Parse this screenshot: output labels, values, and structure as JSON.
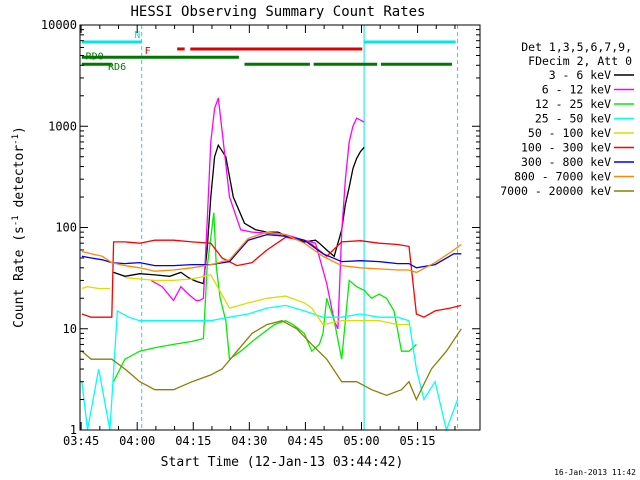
{
  "chart_data": {
    "type": "line",
    "title": "HESSI Observing Summary Count Rates",
    "xlabel": "Start Time (12-Jan-13 03:44:42)",
    "ylabel_main": "Count Rate (s",
    "ylabel_sup1": "-1",
    "ylabel_mid": " detector",
    "ylabel_sup2": "-1",
    "ylabel_end": ")",
    "y_scale": "log",
    "xlim_min": [
      0,
      107
    ],
    "ylim": [
      1,
      10000
    ],
    "x_ticks": [
      {
        "v": 0.3,
        "label": "03:45"
      },
      {
        "v": 15.3,
        "label": "04:00"
      },
      {
        "v": 30.3,
        "label": "04:15"
      },
      {
        "v": 45.3,
        "label": "04:30"
      },
      {
        "v": 60.3,
        "label": "04:45"
      },
      {
        "v": 75.3,
        "label": "05:00"
      },
      {
        "v": 90.3,
        "label": "05:15"
      }
    ],
    "y_ticks": [
      {
        "v": 1,
        "label": "1"
      },
      {
        "v": 10,
        "label": "10"
      },
      {
        "v": 100,
        "label": "100"
      },
      {
        "v": 1000,
        "label": "1000"
      },
      {
        "v": 10000,
        "label": "10000"
      }
    ],
    "legend_header": [
      "Det 1,3,5,6,7,9,",
      "FDecim 2, Att 0"
    ],
    "legend_position": "right",
    "vlines": [
      {
        "x": 16.5,
        "style": "dashed",
        "color": "#00e5ee"
      },
      {
        "x": 76.0,
        "style": "solid",
        "color": "#00e5ee"
      },
      {
        "x": 101.0,
        "style": "dashed",
        "color": "#00e5ee"
      }
    ],
    "flag_bars": [
      {
        "label": "N",
        "color": "#00e5ee",
        "y": 6800,
        "segments": [
          [
            0.5,
            16.5
          ],
          [
            76,
            100.5
          ]
        ]
      },
      {
        "label": "F",
        "color": "#dd0000",
        "y": 5800,
        "segments": [
          [
            26,
            28
          ],
          [
            29.5,
            75.5
          ]
        ]
      },
      {
        "label": "RD0",
        "color": "#007700",
        "y": 4800,
        "segments": [
          [
            0.5,
            42.5
          ]
        ]
      },
      {
        "label": "RD6",
        "color": "#007700",
        "y": 4100,
        "segments": [
          [
            0.5,
            8.5
          ],
          [
            44,
            61.5
          ],
          [
            62.5,
            79.5
          ],
          [
            80.5,
            99.5
          ]
        ]
      }
    ],
    "footer_date": "16-Jan-2013 11:42",
    "series": [
      {
        "name": "3 - 6 keV",
        "color": "#000000",
        "x": [
          8.5,
          9,
          12,
          16,
          20,
          24,
          27,
          29,
          30.5,
          31.5,
          33,
          34,
          35,
          36,
          37,
          39,
          41,
          44,
          47,
          50,
          53,
          56,
          60,
          63,
          64,
          66,
          68,
          70,
          71,
          72,
          73,
          74,
          75,
          76
        ],
        "y": [
          0,
          36,
          33,
          35,
          34,
          33,
          36,
          32,
          30,
          29,
          28,
          60,
          200,
          500,
          650,
          500,
          200,
          110,
          95,
          90,
          90,
          80,
          72,
          75,
          70,
          60,
          52,
          95,
          170,
          250,
          380,
          480,
          560,
          620
        ]
      },
      {
        "name": "6 - 12 keV",
        "color": "#ff00ff",
        "x": [
          16,
          19,
          22,
          25,
          27,
          29,
          31,
          32,
          33,
          34,
          35,
          36,
          37,
          38,
          40,
          43,
          46,
          50,
          55,
          60,
          63,
          66,
          68,
          69,
          70,
          71,
          72,
          73,
          74,
          75,
          76
        ],
        "y": [
          0,
          30,
          26,
          19,
          26,
          22,
          19,
          19,
          20,
          110,
          700,
          1500,
          1900,
          900,
          200,
          95,
          90,
          88,
          85,
          75,
          70,
          28,
          12,
          10,
          90,
          300,
          700,
          1000,
          1200,
          1150,
          1100
        ]
      },
      {
        "name": "12 - 25 keV",
        "color": "#00ee00",
        "x": [
          8.5,
          9,
          12,
          16,
          20,
          25,
          30,
          33,
          34,
          35,
          35.8,
          36.5,
          37.5,
          39,
          40,
          43,
          47,
          52,
          55,
          57,
          60,
          62,
          64,
          65,
          66,
          68,
          70,
          72,
          74,
          76,
          78,
          80,
          82,
          84,
          86,
          88,
          90
        ],
        "y": [
          0,
          3,
          5,
          6,
          6.5,
          7,
          7.5,
          8,
          40,
          80,
          140,
          40,
          20,
          12,
          5,
          6,
          8,
          11,
          12,
          11,
          9,
          6,
          7,
          9,
          20,
          12,
          5,
          30,
          26,
          24,
          20,
          22,
          20,
          15,
          6,
          6,
          7
        ]
      },
      {
        "name": "25 - 50 keV",
        "color": "#00ffff",
        "x": [
          0.5,
          2,
          5,
          8,
          10,
          13,
          16,
          20,
          25,
          30,
          35,
          40,
          45,
          50,
          55,
          60,
          65,
          70,
          75,
          80,
          85,
          88,
          90,
          92,
          95,
          98,
          101
        ],
        "y": [
          3,
          1,
          4,
          1,
          15,
          13,
          12,
          12,
          12,
          12,
          12,
          13,
          14,
          16,
          17,
          15,
          13,
          13,
          14,
          13,
          13,
          12,
          4,
          2,
          3,
          1,
          2
        ]
      },
      {
        "name": "50 - 100 keV",
        "color": "#dddd00",
        "x": [
          0.5,
          2,
          5,
          8,
          8.5,
          12,
          16,
          20,
          25,
          30,
          35,
          40,
          45,
          50,
          55,
          60,
          62,
          65,
          70,
          75,
          80,
          85,
          88,
          90
        ],
        "y": [
          25,
          26,
          25,
          25,
          0,
          32,
          31,
          30,
          30,
          31,
          34,
          16,
          18,
          20,
          21,
          18,
          16,
          11,
          12,
          12,
          12,
          11,
          11,
          0
        ]
      },
      {
        "name": "100 - 300 keV",
        "color": "#ff0000",
        "x": [
          0.5,
          3,
          6,
          8.5,
          9,
          12,
          16,
          20,
          25,
          30,
          35,
          38,
          42,
          46,
          50,
          55,
          60,
          62,
          66,
          70,
          75,
          80,
          85,
          88,
          90,
          92,
          95,
          99,
          102
        ],
        "y": [
          14,
          13,
          13,
          13,
          72,
          72,
          70,
          75,
          75,
          72,
          70,
          50,
          42,
          45,
          60,
          80,
          75,
          68,
          52,
          72,
          74,
          70,
          68,
          65,
          14,
          13,
          15,
          16,
          17
        ]
      },
      {
        "name": "300 - 800 keV",
        "color": "#0000ee",
        "x": [
          0.5,
          3,
          6,
          8.5,
          12,
          16,
          20,
          25,
          30,
          35,
          40,
          45,
          50,
          55,
          60,
          65,
          70,
          75,
          80,
          85,
          88,
          90,
          95,
          100,
          102
        ],
        "y": [
          52,
          50,
          48,
          45,
          44,
          45,
          42,
          42,
          43,
          43,
          46,
          75,
          85,
          82,
          75,
          55,
          46,
          47,
          46,
          44,
          44,
          40,
          43,
          55,
          55
        ]
      },
      {
        "name": "800 - 7000 keV",
        "color": "#ff8800",
        "x": [
          0.5,
          3,
          6,
          8.5,
          12,
          16,
          20,
          25,
          30,
          35,
          40,
          45,
          50,
          55,
          60,
          65,
          70,
          75,
          80,
          85,
          88,
          90,
          95,
          100,
          102
        ],
        "y": [
          58,
          55,
          52,
          45,
          42,
          40,
          37,
          38,
          40,
          43,
          48,
          78,
          90,
          85,
          70,
          52,
          42,
          40,
          39,
          38,
          38,
          36,
          45,
          60,
          68
        ]
      },
      {
        "name": "7000 - 20000 keV",
        "color": "#8b8000",
        "x": [
          0.5,
          3,
          6,
          8.5,
          12,
          16,
          20,
          25,
          30,
          35,
          38,
          42,
          46,
          50,
          54,
          58,
          62,
          66,
          70,
          74,
          78,
          82,
          86,
          88,
          90,
          94,
          98,
          102
        ],
        "y": [
          6,
          5,
          5,
          5,
          4,
          3,
          2.5,
          2.5,
          3,
          3.5,
          4,
          6,
          9,
          11,
          12,
          10,
          7,
          5,
          3,
          3,
          2.5,
          2.2,
          2.5,
          3,
          2,
          4,
          6,
          10
        ]
      }
    ]
  }
}
